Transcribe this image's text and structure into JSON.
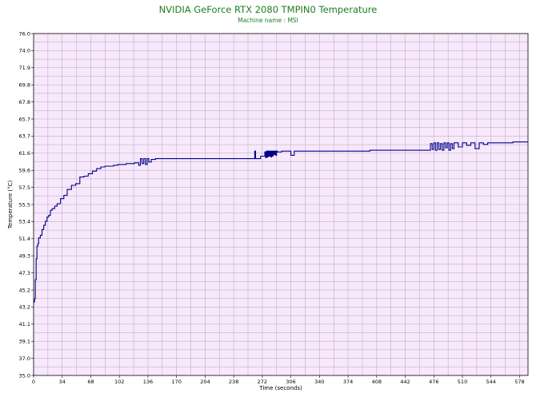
{
  "chart_data": {
    "type": "line",
    "title": "NVIDIA GeForce RTX 2080 TMPIN0 Temperature",
    "subtitle": "Machine name : MSI",
    "xlabel": "Time (seconds)",
    "ylabel": "Temperature (°C)",
    "xlim": [
      0,
      588
    ],
    "ylim": [
      35.0,
      76.0
    ],
    "x_ticks": [
      "0",
      "34",
      "68",
      "102",
      "136",
      "170",
      "204",
      "238",
      "272",
      "306",
      "340",
      "374",
      "408",
      "442",
      "476",
      "510",
      "544",
      "578"
    ],
    "y_ticks": [
      "35.0",
      "37.0",
      "39.1",
      "41.1",
      "43.2",
      "45.2",
      "47.3",
      "49.3",
      "51.4",
      "53.4",
      "55.5",
      "57.5",
      "59.6",
      "61.6",
      "63.7",
      "65.7",
      "67.8",
      "69.8",
      "71.9",
      "74.0",
      "76.0"
    ],
    "grid": true,
    "colors": {
      "line": "#00008b",
      "plot_bg": "#f8e8fb",
      "grid": "#b4a6be",
      "title": "#1e7d1e"
    },
    "series": [
      {
        "x": [
          0,
          1,
          2,
          3,
          4,
          5,
          6,
          8,
          10,
          12,
          14,
          16,
          18,
          20,
          22,
          25,
          28,
          32,
          36,
          40,
          45,
          50,
          55,
          60,
          65,
          70,
          75,
          80,
          85,
          90,
          95,
          100,
          110,
          120,
          125,
          127,
          129,
          131,
          133,
          135,
          137,
          140,
          145,
          150,
          200,
          250,
          262,
          263,
          264,
          270,
          275,
          276,
          277,
          278,
          279,
          280,
          281,
          282,
          283,
          284,
          285,
          286,
          287,
          288,
          289,
          290,
          295,
          300,
          305,
          306,
          310,
          350,
          400,
          450,
          460,
          470,
          472,
          474,
          476,
          478,
          480,
          482,
          484,
          486,
          488,
          490,
          492,
          494,
          496,
          498,
          500,
          505,
          510,
          515,
          520,
          525,
          530,
          535,
          540,
          545,
          550,
          560,
          570,
          580,
          588
        ],
        "y": [
          43.8,
          44.2,
          46.5,
          49.0,
          50.5,
          50.8,
          51.5,
          51.8,
          52.5,
          53.0,
          53.5,
          54.0,
          54.2,
          54.8,
          55.0,
          55.3,
          55.6,
          56.2,
          56.6,
          57.3,
          57.8,
          58.0,
          58.8,
          58.9,
          59.2,
          59.5,
          59.8,
          60.0,
          60.1,
          60.1,
          60.2,
          60.3,
          60.4,
          60.5,
          60.2,
          61.0,
          60.4,
          61.0,
          60.3,
          61.0,
          60.6,
          60.9,
          61.0,
          61.0,
          61.0,
          61.0,
          61.0,
          61.9,
          61.0,
          61.3,
          61.8,
          61.1,
          61.9,
          61.2,
          61.9,
          61.3,
          61.9,
          61.2,
          61.9,
          61.3,
          61.9,
          61.5,
          61.9,
          61.4,
          61.9,
          61.8,
          61.9,
          61.9,
          61.9,
          61.4,
          61.9,
          61.9,
          62.0,
          62.0,
          62.0,
          62.0,
          62.8,
          62.1,
          62.9,
          62.0,
          62.9,
          62.1,
          62.8,
          62.0,
          62.9,
          62.3,
          62.9,
          62.0,
          62.8,
          62.2,
          62.9,
          62.4,
          62.9,
          62.6,
          62.9,
          62.2,
          62.9,
          62.7,
          62.9,
          62.9,
          62.9,
          62.9,
          63.0,
          63.0,
          63.0
        ]
      }
    ]
  }
}
